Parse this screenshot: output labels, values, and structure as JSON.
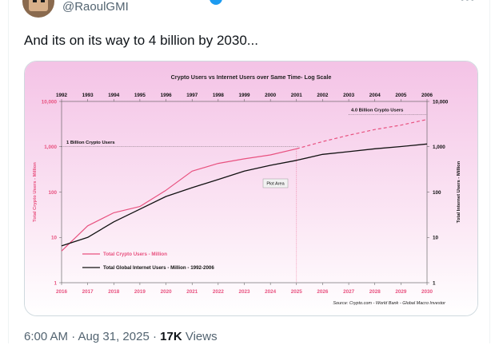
{
  "tweet": {
    "handle": "@RaoulGMI",
    "text": "And its on its way to 4 billion by 2030...",
    "timestamp": "6:00 AM · Aug 31, 2025",
    "separator": " · ",
    "views_count": "17K",
    "views_label": " Views",
    "icons": {
      "verified": "verified-badge-icon",
      "more": "more-icon"
    }
  },
  "chart_data": {
    "type": "line",
    "title": "Crypto Users vs Internet Users over Same Time- Log Scale",
    "top_axis_years": [
      "1992",
      "1993",
      "1994",
      "1995",
      "1996",
      "1997",
      "1998",
      "1999",
      "2000",
      "2001",
      "2002",
      "2003",
      "2004",
      "2005",
      "2006"
    ],
    "x": [
      "2016",
      "2017",
      "2018",
      "2019",
      "2020",
      "2021",
      "2022",
      "2023",
      "2024",
      "2025",
      "2026",
      "2027",
      "2028",
      "2029",
      "2030"
    ],
    "y_ticks": [
      "1",
      "10",
      "100",
      "1,000",
      "10,000"
    ],
    "ylim": [
      1,
      10000
    ],
    "yscale": "log",
    "ylabel_left": "Total Crypto Users - Million",
    "ylabel_right": "Total Internet Users - Million",
    "series": [
      {
        "name": "Total Crypto Users - Million",
        "color": "#e8517f",
        "style": "solid",
        "values": [
          5,
          18,
          35,
          48,
          110,
          290,
          430,
          540,
          660,
          900,
          null,
          null,
          null,
          null,
          null
        ]
      },
      {
        "name": "Total Crypto Users - Million (projection)",
        "color": "#e8517f",
        "style": "dashed",
        "values": [
          null,
          null,
          null,
          null,
          null,
          null,
          null,
          null,
          null,
          900,
          1300,
          1800,
          2400,
          3000,
          4000
        ]
      },
      {
        "name": "Total Global Internet Users - Million - 1992-2006",
        "color": "#111111",
        "style": "solid",
        "values": [
          6.5,
          10,
          22,
          42,
          80,
          125,
          190,
          290,
          390,
          500,
          680,
          780,
          900,
          1010,
          1150
        ]
      }
    ],
    "legend": {
      "placement": "bottom-left",
      "entries": [
        "Total Crypto Users - Million",
        "Total Global Internet Users - Million - 1992-2006"
      ]
    },
    "annotations": {
      "one_billion": "1 Billion Crypto Users",
      "four_billion": "4.0 Billion Crypto Users",
      "plot_area": "Plot Area",
      "source": "Source:  Crypto.com - World Bank - Global Macro Investor"
    },
    "colors": {
      "background_top": "#f4c3e6",
      "background_bottom": "#ffffff"
    }
  }
}
